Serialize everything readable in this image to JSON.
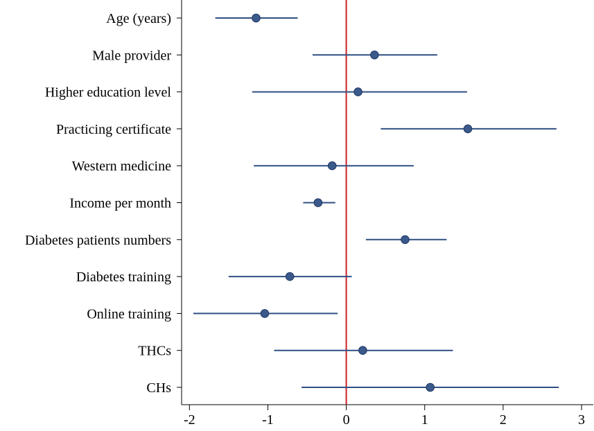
{
  "chart_data": {
    "type": "scatter",
    "subtype": "coefficient-plot",
    "title": "",
    "xlabel": "",
    "ylabel": "",
    "xlim": [
      -2.1,
      3.15
    ],
    "xticks": [
      -2,
      -1,
      0,
      1,
      2,
      3
    ],
    "xtick_labels": [
      "-2",
      "-1",
      "0",
      "1",
      "2",
      "3"
    ],
    "reference_line": {
      "x": 0,
      "color": "#cc2027"
    },
    "marker_color": "#3a5a8c",
    "line_color": "#2f4f82",
    "categories": [
      "Age (years)",
      "Male provider",
      "Higher education level",
      "Practicing certificate",
      "Western medicine",
      "Income per month",
      "Diabetes patients numbers",
      "Diabetes training",
      "Online training",
      "THCs",
      "CHs"
    ],
    "series": [
      {
        "name": "estimate",
        "values": [
          -1.15,
          0.36,
          0.15,
          1.55,
          -0.18,
          -0.36,
          0.75,
          -0.72,
          -1.04,
          0.21,
          1.07
        ]
      },
      {
        "name": "ci_lower",
        "values": [
          -1.67,
          -0.43,
          -1.2,
          0.44,
          -1.18,
          -0.55,
          0.25,
          -1.5,
          -1.95,
          -0.92,
          -0.57
        ]
      },
      {
        "name": "ci_upper",
        "values": [
          -0.62,
          1.16,
          1.54,
          2.68,
          0.86,
          -0.14,
          1.28,
          0.07,
          -0.11,
          1.36,
          2.71
        ]
      }
    ]
  }
}
